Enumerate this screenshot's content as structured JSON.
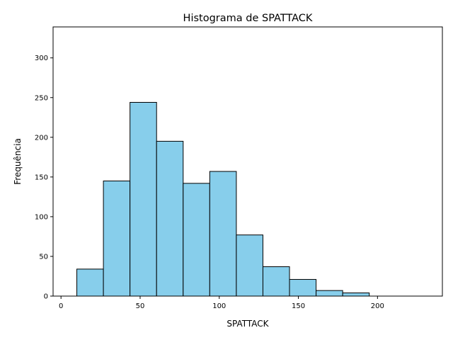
{
  "chart_data": {
    "type": "bar",
    "title": "Histograma de SPATTACK",
    "xlabel": "SPATTACK",
    "ylabel": "Frequência",
    "xlim": [
      -5,
      241
    ],
    "ylim": [
      0,
      339
    ],
    "xticks": [
      0,
      50,
      100,
      150,
      200
    ],
    "yticks": [
      0,
      50,
      100,
      150,
      200,
      250,
      300
    ],
    "bar_color": "#87ceeb",
    "edge_color": "#000000",
    "grid": false,
    "bins": [
      {
        "x0": 10.0,
        "x1": 26.8,
        "count": 34
      },
      {
        "x0": 26.8,
        "x1": 43.6,
        "count": 145
      },
      {
        "x0": 43.6,
        "x1": 60.4,
        "count": 244
      },
      {
        "x0": 60.4,
        "x1": 77.2,
        "count": 195
      },
      {
        "x0": 77.2,
        "x1": 94.0,
        "count": 142
      },
      {
        "x0": 94.0,
        "x1": 110.8,
        "count": 157
      },
      {
        "x0": 110.8,
        "x1": 127.6,
        "count": 77
      },
      {
        "x0": 127.6,
        "x1": 144.4,
        "count": 37
      },
      {
        "x0": 144.4,
        "x1": 161.2,
        "count": 21
      },
      {
        "x0": 161.2,
        "x1": 178.0,
        "count": 7
      },
      {
        "x0": 178.0,
        "x1": 194.8,
        "count": 4
      }
    ]
  }
}
